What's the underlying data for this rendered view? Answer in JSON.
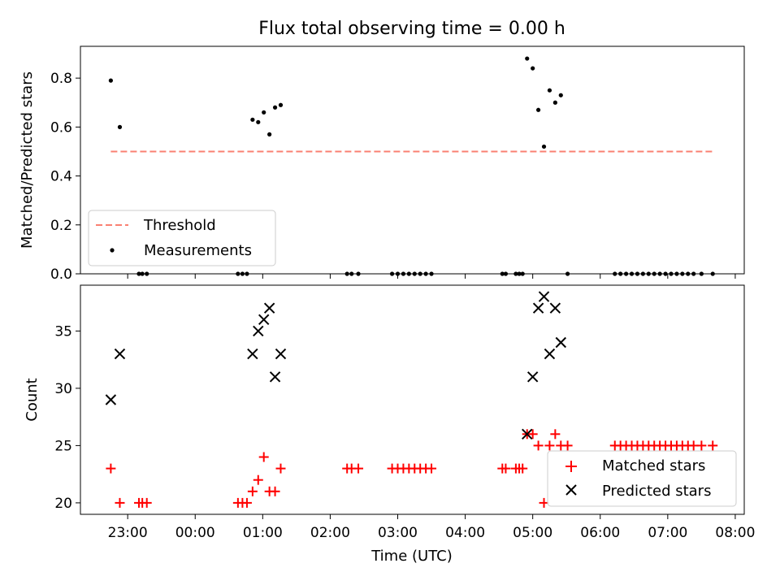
{
  "chart_data": [
    {
      "type": "scatter",
      "title": "Flux total observing time = 0.00 h",
      "xlabel": "",
      "ylabel": "Matched/Predicted stars",
      "ylim": [
        0,
        0.93
      ],
      "yticks": [
        0.0,
        0.2,
        0.4,
        0.6,
        0.8
      ],
      "yticklabels": [
        "0.0",
        "0.2",
        "0.4",
        "0.6",
        "0.8"
      ],
      "grid": false,
      "legend_position": "lower-left",
      "threshold": {
        "name": "Threshold",
        "value": 0.5,
        "x_start": "22:45",
        "x_end": "07:40",
        "color": "#fa8072"
      },
      "series": [
        {
          "name": "Measurements",
          "color": "#000000",
          "points": [
            [
              "22:45",
              0.79
            ],
            [
              "22:53",
              0.6
            ],
            [
              "23:10",
              0.0
            ],
            [
              "23:13",
              0.0
            ],
            [
              "23:17",
              0.0
            ],
            [
              "00:38",
              0.0
            ],
            [
              "00:42",
              0.0
            ],
            [
              "00:46",
              0.0
            ],
            [
              "00:51",
              0.63
            ],
            [
              "00:56",
              0.62
            ],
            [
              "01:01",
              0.66
            ],
            [
              "01:06",
              0.57
            ],
            [
              "01:11",
              0.68
            ],
            [
              "01:16",
              0.69
            ],
            [
              "02:15",
              0.0
            ],
            [
              "02:19",
              0.0
            ],
            [
              "02:25",
              0.0
            ],
            [
              "02:55",
              0.0
            ],
            [
              "03:00",
              0.0
            ],
            [
              "03:05",
              0.0
            ],
            [
              "03:10",
              0.0
            ],
            [
              "03:15",
              0.0
            ],
            [
              "03:20",
              0.0
            ],
            [
              "03:25",
              0.0
            ],
            [
              "03:30",
              0.0
            ],
            [
              "04:33",
              0.0
            ],
            [
              "04:36",
              0.0
            ],
            [
              "04:45",
              0.0
            ],
            [
              "04:48",
              0.0
            ],
            [
              "04:51",
              0.0
            ],
            [
              "04:55",
              0.88
            ],
            [
              "05:00",
              0.84
            ],
            [
              "05:05",
              0.67
            ],
            [
              "05:10",
              0.52
            ],
            [
              "05:15",
              0.75
            ],
            [
              "05:20",
              0.7
            ],
            [
              "05:25",
              0.73
            ],
            [
              "05:31",
              0.0
            ],
            [
              "06:13",
              0.0
            ],
            [
              "06:18",
              0.0
            ],
            [
              "06:23",
              0.0
            ],
            [
              "06:28",
              0.0
            ],
            [
              "06:33",
              0.0
            ],
            [
              "06:38",
              0.0
            ],
            [
              "06:43",
              0.0
            ],
            [
              "06:48",
              0.0
            ],
            [
              "06:53",
              0.0
            ],
            [
              "06:58",
              0.0
            ],
            [
              "07:03",
              0.0
            ],
            [
              "07:08",
              0.0
            ],
            [
              "07:13",
              0.0
            ],
            [
              "07:18",
              0.0
            ],
            [
              "07:23",
              0.0
            ],
            [
              "07:30",
              0.0
            ],
            [
              "07:40",
              0.0
            ]
          ]
        }
      ]
    },
    {
      "type": "scatter",
      "xlabel": "Time (UTC)",
      "ylabel": "Count",
      "ylim": [
        19,
        39
      ],
      "yticks": [
        20,
        25,
        30,
        35
      ],
      "yticklabels": [
        "20",
        "25",
        "30",
        "35"
      ],
      "xlim": [
        "22:18",
        "08:08"
      ],
      "xticklabels": [
        "23:00",
        "00:00",
        "01:00",
        "02:00",
        "03:00",
        "04:00",
        "05:00",
        "06:00",
        "07:00",
        "08:00"
      ],
      "grid": false,
      "legend_position": "lower-right",
      "series": [
        {
          "name": "Matched stars",
          "marker": "plus",
          "color": "#ff0000",
          "points": [
            [
              "22:45",
              23
            ],
            [
              "22:53",
              20
            ],
            [
              "23:10",
              20
            ],
            [
              "23:13",
              20
            ],
            [
              "23:17",
              20
            ],
            [
              "00:38",
              20
            ],
            [
              "00:42",
              20
            ],
            [
              "00:46",
              20
            ],
            [
              "00:51",
              21
            ],
            [
              "00:56",
              22
            ],
            [
              "01:01",
              24
            ],
            [
              "01:06",
              21
            ],
            [
              "01:11",
              21
            ],
            [
              "01:16",
              23
            ],
            [
              "02:15",
              23
            ],
            [
              "02:19",
              23
            ],
            [
              "02:25",
              23
            ],
            [
              "02:55",
              23
            ],
            [
              "03:00",
              23
            ],
            [
              "03:05",
              23
            ],
            [
              "03:10",
              23
            ],
            [
              "03:15",
              23
            ],
            [
              "03:20",
              23
            ],
            [
              "03:25",
              23
            ],
            [
              "03:30",
              23
            ],
            [
              "04:33",
              23
            ],
            [
              "04:36",
              23
            ],
            [
              "04:45",
              23
            ],
            [
              "04:48",
              23
            ],
            [
              "04:51",
              23
            ],
            [
              "04:55",
              26
            ],
            [
              "05:00",
              26
            ],
            [
              "05:05",
              25
            ],
            [
              "05:10",
              20
            ],
            [
              "05:15",
              25
            ],
            [
              "05:20",
              26
            ],
            [
              "05:25",
              25
            ],
            [
              "05:31",
              25
            ],
            [
              "06:13",
              25
            ],
            [
              "06:18",
              25
            ],
            [
              "06:23",
              25
            ],
            [
              "06:28",
              25
            ],
            [
              "06:33",
              25
            ],
            [
              "06:38",
              25
            ],
            [
              "06:43",
              25
            ],
            [
              "06:48",
              25
            ],
            [
              "06:53",
              25
            ],
            [
              "06:58",
              25
            ],
            [
              "07:03",
              25
            ],
            [
              "07:08",
              25
            ],
            [
              "07:13",
              25
            ],
            [
              "07:18",
              25
            ],
            [
              "07:23",
              25
            ],
            [
              "07:30",
              25
            ],
            [
              "07:40",
              25
            ]
          ]
        },
        {
          "name": "Predicted stars",
          "marker": "x",
          "color": "#000000",
          "points": [
            [
              "22:45",
              29
            ],
            [
              "22:53",
              33
            ],
            [
              "00:51",
              33
            ],
            [
              "00:56",
              35
            ],
            [
              "01:01",
              36
            ],
            [
              "01:06",
              37
            ],
            [
              "01:11",
              31
            ],
            [
              "01:16",
              33
            ],
            [
              "04:55",
              26
            ],
            [
              "05:00",
              31
            ],
            [
              "05:05",
              37
            ],
            [
              "05:10",
              38
            ],
            [
              "05:15",
              33
            ],
            [
              "05:20",
              37
            ],
            [
              "05:25",
              34
            ]
          ]
        }
      ]
    }
  ]
}
